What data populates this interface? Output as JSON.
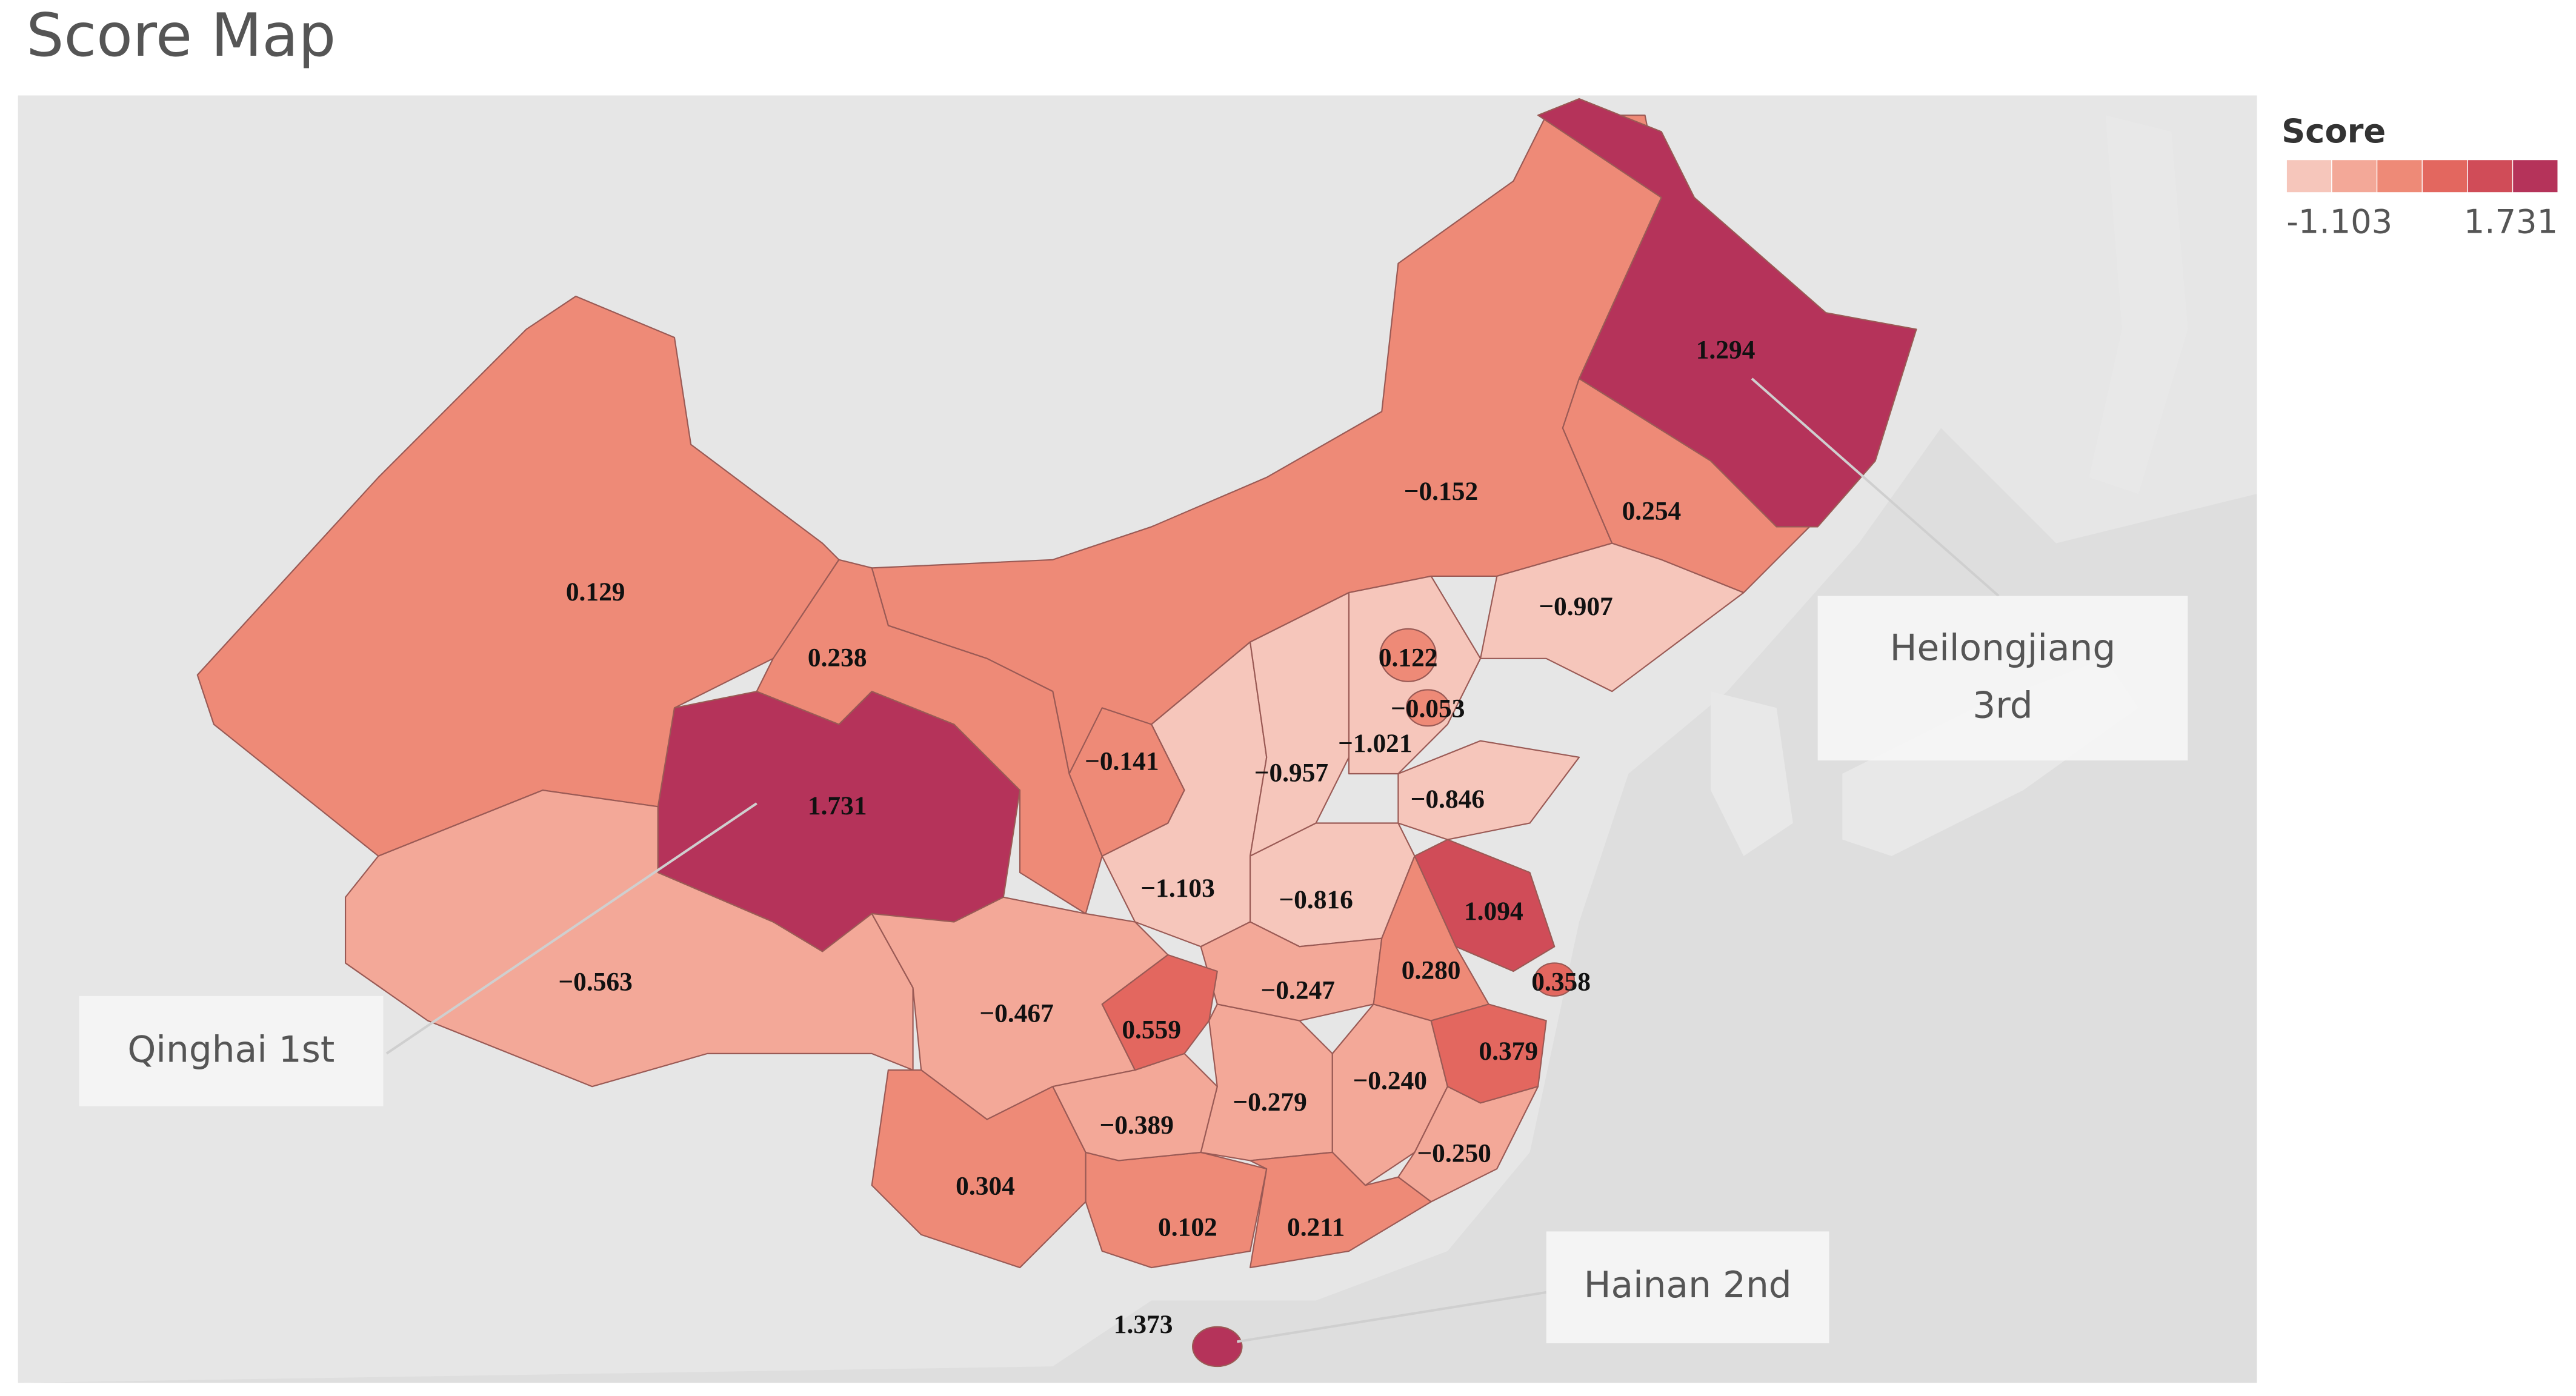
{
  "chart_data": {
    "type": "choropleth",
    "title": "Score Map",
    "values": [
      0.129,
      0.238,
      1.731,
      -0.563,
      -0.467,
      0.559,
      0.304,
      -0.389,
      0.102,
      0.211,
      1.373,
      -0.279,
      -0.24,
      -0.25,
      0.379,
      0.358,
      1.094,
      0.28,
      -0.247,
      -0.816,
      -1.103,
      -0.141,
      -0.957,
      -1.021,
      -0.053,
      0.122,
      -0.846,
      -0.907,
      0.254,
      1.294,
      -0.152
    ],
    "value_labels": [
      "0.129",
      "0.238",
      "1.731",
      "−0.563",
      "−0.467",
      "0.559",
      "0.304",
      "−0.389",
      "0.102",
      "0.211",
      "1.373",
      "−0.279",
      "−0.240",
      "−0.250",
      "0.379",
      "0.358",
      "1.094",
      "0.280",
      "−0.247",
      "−0.816",
      "−1.103",
      "−0.141",
      "−0.957",
      "−1.021",
      "−0.053",
      "0.122",
      "−0.846",
      "−0.907",
      "0.254",
      "1.294",
      "−0.152"
    ],
    "legend": {
      "title": "Score",
      "min": -1.103,
      "max": 1.731,
      "colors": [
        "#f6c6bb",
        "#f3a898",
        "#ee8a77",
        "#e3675f",
        "#d04c58",
        "#b5335a"
      ]
    },
    "annotations": [
      "Qinghai 1st",
      "Heilongjiang 3rd",
      "Hainan 2nd"
    ]
  }
}
